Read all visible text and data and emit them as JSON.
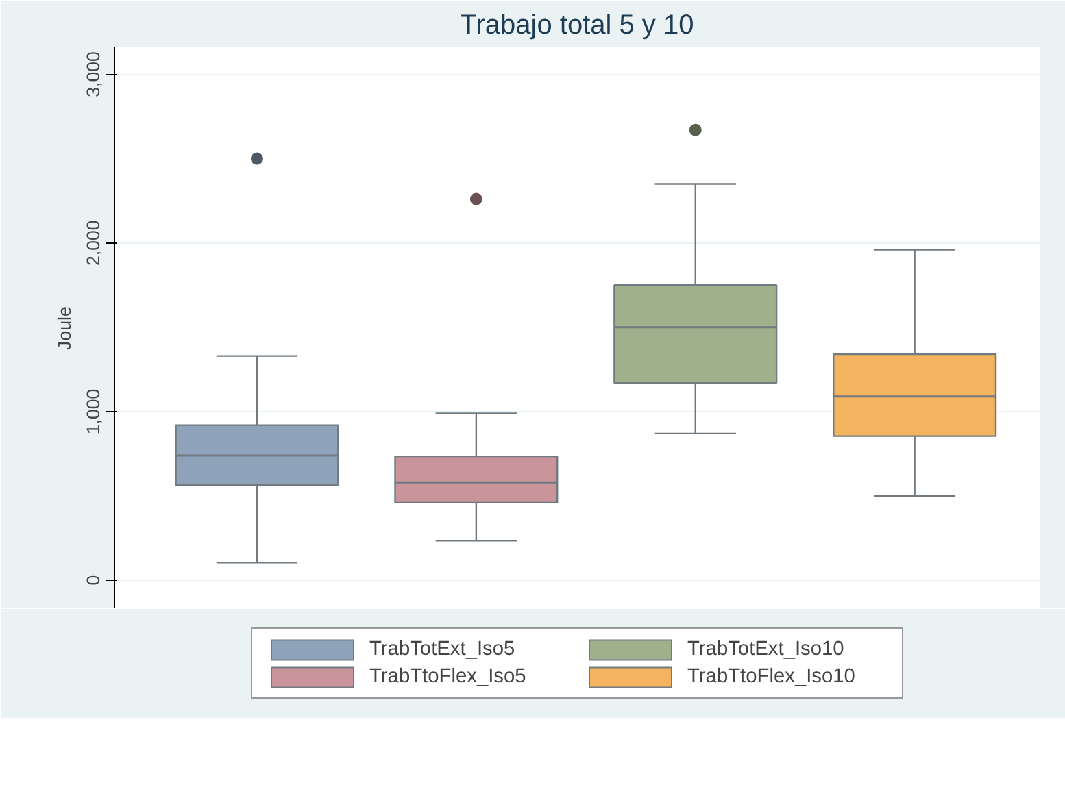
{
  "chart_data": {
    "type": "box",
    "title": "Trabajo total 5 y 10",
    "ylabel": "Joule",
    "categories": [
      null,
      null,
      null,
      null
    ],
    "ylim": [
      -170,
      3160
    ],
    "yticks": [
      {
        "value": 0,
        "label": "0"
      },
      {
        "value": 1000,
        "label": "1,000"
      },
      {
        "value": 2000,
        "label": "2,000"
      },
      {
        "value": 3000,
        "label": "3,000"
      }
    ],
    "grid": "y",
    "legend": "bottom",
    "series": [
      {
        "name": "TrabTotExt_Iso5",
        "color": "#8ea3ba",
        "boxes": [
          {
            "low": 105,
            "q1": 565,
            "median": 740,
            "q3": 920,
            "high": 1330,
            "outliers": [
              2500
            ]
          },
          null,
          null,
          null
        ]
      },
      {
        "name": "TrabTtoFlex_Iso5",
        "color": "#c9959a",
        "boxes": [
          null,
          {
            "low": 235,
            "q1": 460,
            "median": 580,
            "q3": 735,
            "high": 990,
            "outliers": [
              2260
            ]
          },
          null,
          null
        ]
      },
      {
        "name": "TrabTotExt_Iso10",
        "color": "#9fb18c",
        "boxes": [
          null,
          null,
          {
            "low": 870,
            "q1": 1170,
            "median": 1500,
            "q3": 1750,
            "high": 2350,
            "outliers": [
              2670
            ]
          },
          null
        ]
      },
      {
        "name": "TrabTtoFlex_Iso10",
        "color": "#f4b45f",
        "boxes": [
          null,
          null,
          null,
          {
            "low": 500,
            "q1": 855,
            "median": 1090,
            "q3": 1340,
            "high": 1960
          }
        ]
      }
    ]
  }
}
